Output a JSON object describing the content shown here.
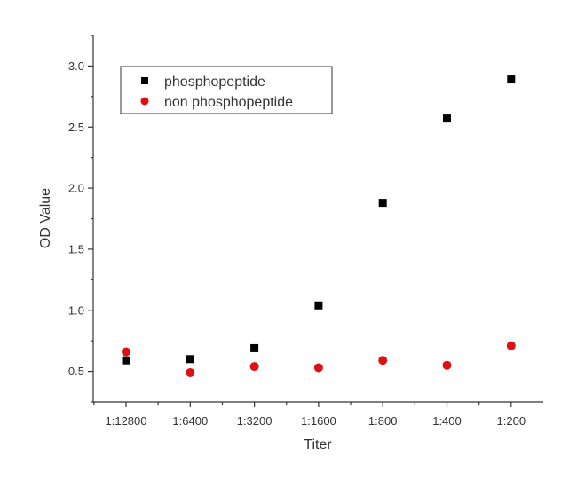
{
  "chart_data": {
    "type": "scatter",
    "title": "",
    "xlabel": "Titer",
    "ylabel": "OD Value",
    "categories": [
      "1:12800",
      "1:6400",
      "1:3200",
      "1:1600",
      "1:800",
      "1:400",
      "1:200"
    ],
    "ylim": [
      0.25,
      3.25
    ],
    "yticks": [
      0.5,
      1.0,
      1.5,
      2.0,
      2.5,
      3.0
    ],
    "ytick_labels": [
      "0.5",
      "1.0",
      "1.5",
      "2.0",
      "2.5",
      "3.0"
    ],
    "grid": false,
    "legend_position": "top-left",
    "series": [
      {
        "name": "phosphopeptide",
        "marker": "square",
        "color": "#000000",
        "values": [
          0.59,
          0.6,
          0.69,
          1.04,
          1.88,
          2.57,
          2.89
        ]
      },
      {
        "name": "non phosphopeptide",
        "marker": "circle",
        "color": "#dd1111",
        "values": [
          0.66,
          0.49,
          0.54,
          0.53,
          0.59,
          0.55,
          0.71
        ]
      }
    ]
  }
}
